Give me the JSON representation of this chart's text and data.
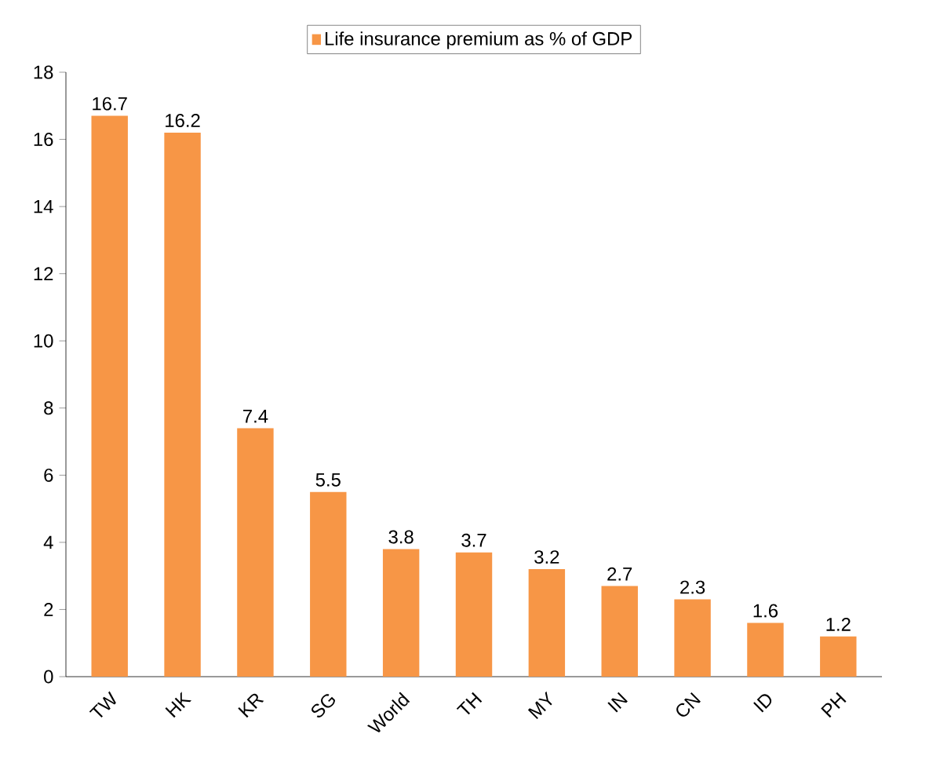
{
  "chart_data": {
    "type": "bar",
    "categories": [
      "TW",
      "HK",
      "KR",
      "SG",
      "World",
      "TH",
      "MY",
      "IN",
      "CN",
      "ID",
      "PH"
    ],
    "series": [
      {
        "name": "Life insurance premium as % of GDP",
        "color": "#f79646",
        "values": [
          16.7,
          16.2,
          7.4,
          5.5,
          3.8,
          3.7,
          3.2,
          2.7,
          2.3,
          1.6,
          1.2
        ]
      }
    ],
    "ylim": [
      0,
      18
    ],
    "yticks": [
      0,
      2,
      4,
      6,
      8,
      10,
      12,
      14,
      16,
      18
    ],
    "data_labels": true,
    "grid": false,
    "legend": "top"
  }
}
